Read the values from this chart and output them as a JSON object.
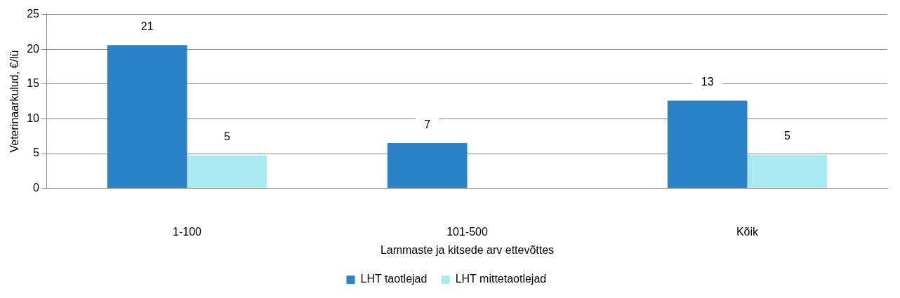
{
  "chart_data": {
    "type": "bar",
    "xlabel": "Lammaste ja kitsede arv ettevõttes",
    "ylabel": "Veterinaarkulud, €/lü",
    "categories": [
      "1-100",
      "101-500",
      "Kõik"
    ],
    "series": [
      {
        "name": "LHT taotlejad",
        "color": "#2a82c9",
        "values": [
          20.6,
          6.5,
          12.6
        ],
        "value_labels": [
          "21",
          "7",
          "13"
        ]
      },
      {
        "name": "LHT mittetaotlejad",
        "color": "#a9eaf0",
        "values": [
          4.7,
          null,
          4.8
        ],
        "value_labels": [
          "5",
          null,
          "5"
        ]
      }
    ],
    "ylim": [
      0,
      25
    ],
    "yticks": [
      0,
      5,
      10,
      15,
      20,
      25
    ],
    "grid": "y",
    "legend": "bottom"
  }
}
